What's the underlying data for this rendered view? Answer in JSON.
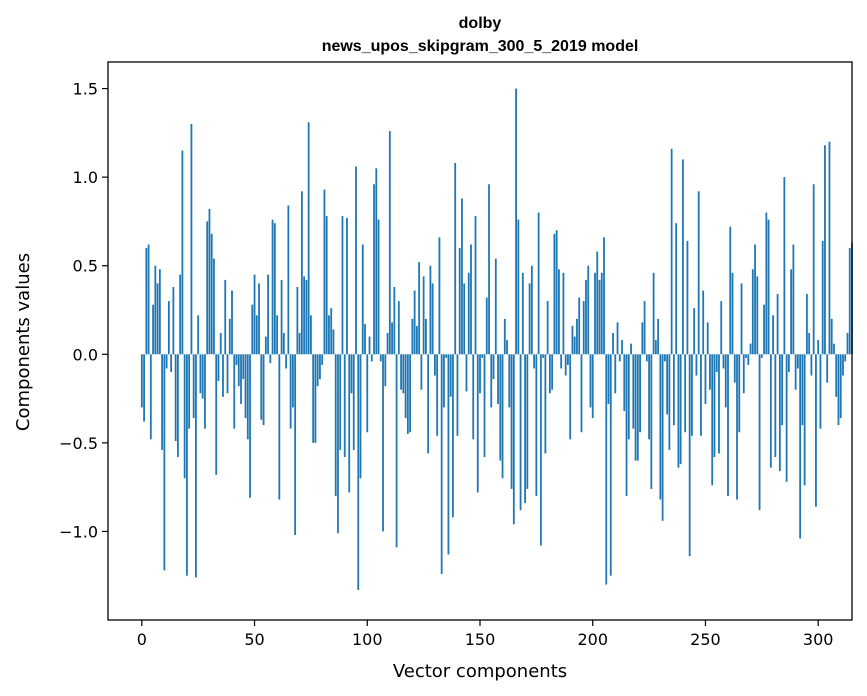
{
  "chart_data": {
    "type": "bar",
    "title": "dolby",
    "subtitle": "news_upos_skipgram_300_5_2019 model",
    "xlabel": "Vector components",
    "ylabel": "Components values",
    "xlim": [
      -15,
      315
    ],
    "ylim": [
      -1.5,
      1.65
    ],
    "xticks": [
      0,
      50,
      100,
      150,
      200,
      250,
      300
    ],
    "yticks": [
      -1.0,
      -0.5,
      0.0,
      0.5,
      1.0,
      1.5
    ],
    "ytick_labels": [
      "−1.0",
      "−0.5",
      "0.0",
      "0.5",
      "1.0",
      "1.5"
    ],
    "bar_color": "#1f77b4",
    "grid": false,
    "values": [
      -0.3,
      -0.38,
      0.6,
      0.62,
      -0.48,
      0.28,
      0.5,
      0.4,
      0.48,
      -0.54,
      -1.22,
      -0.08,
      0.3,
      -0.1,
      0.38,
      -0.49,
      -0.58,
      0.45,
      1.15,
      -0.7,
      -1.25,
      -0.42,
      1.3,
      -0.36,
      -1.26,
      0.22,
      -0.22,
      -0.25,
      -0.42,
      0.75,
      0.82,
      0.68,
      0.54,
      -0.68,
      -0.15,
      0.12,
      -0.24,
      0.42,
      -0.22,
      0.2,
      0.36,
      -0.42,
      -0.06,
      -0.18,
      -0.28,
      -0.14,
      -0.36,
      -0.48,
      -0.81,
      0.28,
      0.45,
      0.22,
      0.4,
      -0.37,
      -0.4,
      0.1,
      0.45,
      -0.05,
      0.76,
      0.74,
      0.22,
      -0.82,
      0.42,
      0.12,
      -0.08,
      0.84,
      -0.42,
      -0.3,
      -1.02,
      0.38,
      0.12,
      0.92,
      0.44,
      0.42,
      1.31,
      0.22,
      -0.5,
      -0.5,
      -0.18,
      -0.14,
      -0.06,
      0.93,
      0.78,
      0.22,
      0.26,
      0.14,
      -0.8,
      -1.01,
      -0.54,
      0.78,
      -0.58,
      0.77,
      -0.78,
      -0.22,
      -0.54,
      1.06,
      -1.33,
      -0.7,
      0.62,
      0.17,
      -0.44,
      0.1,
      -0.04,
      0.96,
      1.05,
      0.76,
      -0.04,
      -1.0,
      -0.18,
      0.12,
      1.26,
      0.18,
      0.38,
      -1.09,
      0.3,
      -0.2,
      -0.22,
      -0.36,
      -0.45,
      -0.44,
      0.2,
      0.36,
      0.16,
      0.52,
      -0.2,
      0.44,
      0.2,
      -0.56,
      0.5,
      0.4,
      -0.12,
      -0.46,
      0.66,
      -1.24,
      -0.3,
      -0.02,
      -1.13,
      -0.24,
      -0.92,
      1.08,
      -0.46,
      0.6,
      0.88,
      0.4,
      -0.21,
      0.46,
      0.62,
      -0.48,
      0.78,
      -0.78,
      -0.22,
      -0.02,
      -0.58,
      0.32,
      0.96,
      -0.3,
      -0.14,
      0.54,
      -0.28,
      -0.6,
      -0.7,
      0.2,
      0.08,
      -0.3,
      -0.76,
      -0.96,
      1.5,
      0.76,
      -0.88,
      0.46,
      -0.84,
      -0.76,
      0.4,
      0.5,
      -0.08,
      -0.8,
      0.8,
      -1.08,
      -0.02,
      -0.56,
      0.3,
      -0.22,
      -0.2,
      0.68,
      0.7,
      0.48,
      -0.08,
      0.46,
      -0.12,
      -0.06,
      -0.48,
      0.16,
      0.1,
      0.2,
      0.32,
      -0.44,
      0.3,
      0.42,
      0.5,
      -0.3,
      -0.36,
      0.46,
      0.58,
      0.42,
      0.46,
      0.66,
      -1.3,
      -0.28,
      -1.25,
      0.12,
      -0.22,
      0.18,
      -0.04,
      0.08,
      -0.32,
      -0.8,
      -0.48,
      0.06,
      -0.42,
      -0.6,
      -0.6,
      -0.44,
      0.18,
      0.3,
      -0.04,
      -0.48,
      -0.76,
      0.46,
      0.08,
      0.2,
      -0.82,
      -0.94,
      -0.04,
      -0.34,
      -0.54,
      1.16,
      -0.4,
      0.74,
      -0.64,
      -0.62,
      1.1,
      -0.44,
      0.64,
      -1.14,
      -0.46,
      0.26,
      -0.12,
      0.92,
      -0.46,
      0.36,
      -0.28,
      0.18,
      -0.2,
      -0.74,
      -0.58,
      -0.1,
      -0.56,
      0.3,
      -0.08,
      -0.3,
      -0.8,
      0.72,
      0.46,
      -0.16,
      -0.82,
      -0.44,
      0.4,
      -0.22,
      -0.02,
      -0.06,
      0.06,
      0.48,
      0.62,
      0.44,
      -0.88,
      -0.02,
      0.28,
      0.8,
      0.76,
      -0.64,
      0.22,
      -0.58,
      0.34,
      -0.66,
      -0.4,
      1.0,
      -0.72,
      -0.1,
      0.48,
      0.62,
      -0.2,
      -0.08,
      -1.04,
      -0.4,
      -0.74,
      0.34,
      0.12,
      -0.12,
      0.96,
      -0.86,
      0.08,
      -0.42,
      0.64,
      1.18,
      -0.16,
      1.2,
      0.2,
      0.06,
      -0.24,
      -0.4,
      -0.36,
      -0.12,
      -0.04,
      0.12,
      0.6,
      0.63
    ]
  }
}
